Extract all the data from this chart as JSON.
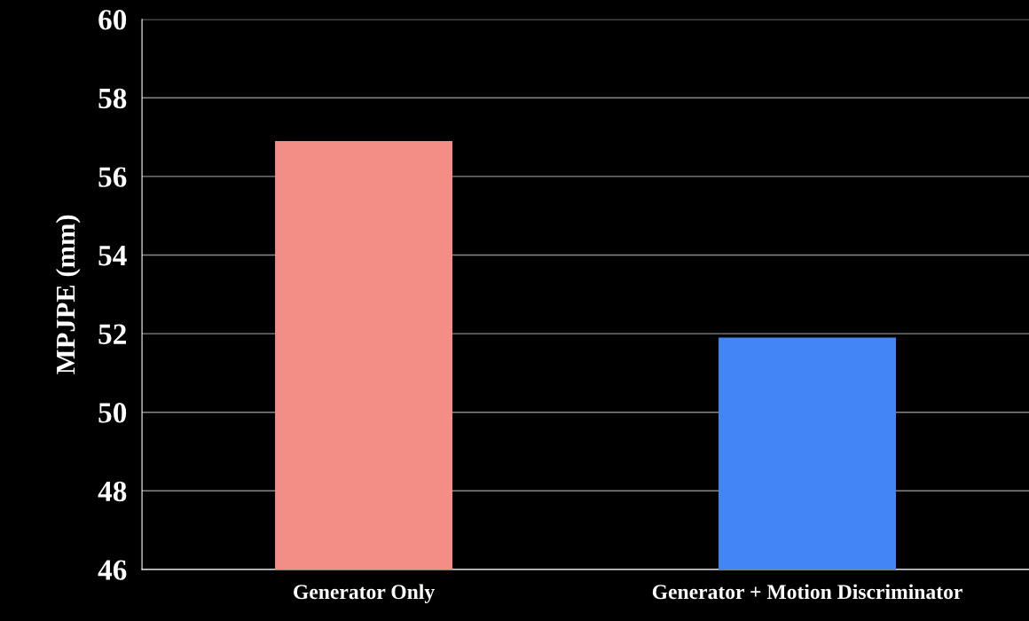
{
  "chart_data": {
    "type": "bar",
    "ylabel": "MPJPE (mm)",
    "categories": [
      "Generator Only",
      "Generator + Motion Discriminator"
    ],
    "values": [
      56.9,
      51.9
    ],
    "colors": [
      "#f28e86",
      "#4285f4"
    ],
    "ylim": [
      46,
      60
    ],
    "yticks": [
      46,
      48,
      50,
      52,
      54,
      56,
      58,
      60
    ],
    "grid": "y"
  }
}
